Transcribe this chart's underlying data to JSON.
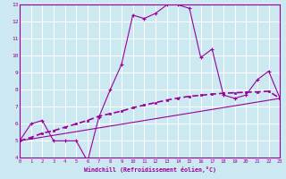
{
  "xlabel": "Windchill (Refroidissement éolien,°C)",
  "background_color": "#cce8f0",
  "grid_color": "#aaddee",
  "line_color": "#990099",
  "border_color": "#660066",
  "xmin": 0,
  "xmax": 23,
  "ymin": 4,
  "ymax": 13,
  "curve1_x": [
    0,
    1,
    2,
    3,
    4,
    5,
    6,
    7,
    8,
    9,
    10,
    11,
    12,
    13,
    14,
    15,
    16,
    17,
    18,
    19,
    20,
    21,
    22,
    23
  ],
  "curve1_y": [
    5.0,
    6.0,
    6.2,
    5.0,
    5.0,
    5.0,
    3.8,
    6.4,
    8.0,
    9.5,
    12.4,
    12.2,
    12.5,
    13.0,
    13.0,
    12.8,
    9.9,
    10.4,
    7.7,
    7.5,
    7.7,
    8.6,
    9.1,
    7.5
  ],
  "curve2_x": [
    0,
    1,
    2,
    3,
    4,
    5,
    6,
    7,
    8,
    9,
    10,
    11,
    12,
    13,
    14,
    15,
    16,
    17,
    18,
    19,
    20,
    21,
    22,
    23
  ],
  "curve2_y": [
    5.0,
    5.2,
    5.45,
    5.6,
    5.8,
    6.0,
    6.2,
    6.45,
    6.6,
    6.75,
    6.95,
    7.1,
    7.25,
    7.4,
    7.52,
    7.62,
    7.68,
    7.75,
    7.8,
    7.83,
    7.86,
    7.88,
    7.92,
    7.5
  ],
  "curve3_x": [
    0,
    23
  ],
  "curve3_y": [
    5.0,
    7.5
  ],
  "xtick_labels": [
    "0",
    "1",
    "2",
    "3",
    "4",
    "5",
    "6",
    "7",
    "8",
    "9",
    "10",
    "11",
    "12",
    "13",
    "14",
    "15",
    "16",
    "17",
    "18",
    "19",
    "20",
    "21",
    "22",
    "23"
  ],
  "ytick_labels": [
    "4",
    "5",
    "6",
    "7",
    "8",
    "9",
    "10",
    "11",
    "12",
    "13"
  ]
}
